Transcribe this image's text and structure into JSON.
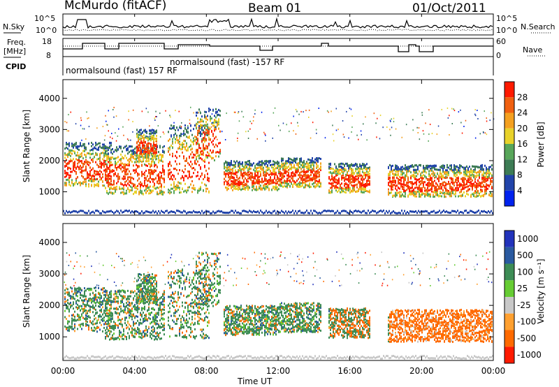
{
  "header": {
    "station": "McMurdo (fitACF)",
    "beam": "Beam 01",
    "date": "01/Oct/2011"
  },
  "noise_panel": {
    "left_label": "N.Sky",
    "left_ticks": [
      "10^5",
      "10^0"
    ],
    "right_label": "N.Search",
    "right_ticks": [
      "10^5",
      "10^0"
    ]
  },
  "freq_panel": {
    "left_label_line1": "Freq.",
    "left_label_line2": "[MHz]",
    "left_ticks": [
      "18",
      "8"
    ],
    "right_label": "Nave",
    "right_ticks": [
      "60",
      "0"
    ]
  },
  "cpid_panel": {
    "label": "CPID",
    "entries": [
      "normalsound (fast) 157 RF",
      "normalsound (fast) -157 RF"
    ]
  },
  "colors": {
    "power_scale": [
      "#0022ee",
      "#2244aa",
      "#3d7c55",
      "#58a65a",
      "#e8d22a",
      "#f4a020",
      "#f06010",
      "#ff1a00"
    ],
    "velocity_scale": [
      "#ff1a00",
      "#ff6a00",
      "#ffa030",
      "#c8c8c8",
      "#66cc33",
      "#3d8c55",
      "#2a5aa0",
      "#2233bb"
    ]
  },
  "chart_data": [
    {
      "type": "heatmap",
      "name": "power",
      "ylabel": "Slant Range [km]",
      "yticks": [
        "1000",
        "2000",
        "3000",
        "4000"
      ],
      "ylim": [
        250,
        4600
      ],
      "xlabel": "Time UT",
      "xticks": [
        "00:00",
        "04:00",
        "08:00",
        "12:00",
        "16:00",
        "20:00",
        "00:00"
      ],
      "colorbar_label": "Power [dB]",
      "colorbar_ticks": [
        "4",
        "8",
        "12",
        "16",
        "20",
        "24",
        "28"
      ],
      "clim": [
        0,
        30
      ]
    },
    {
      "type": "heatmap",
      "name": "velocity",
      "ylabel": "Slant Range [km]",
      "yticks": [
        "1000",
        "2000",
        "3000",
        "4000"
      ],
      "ylim": [
        250,
        4600
      ],
      "xlabel": "Time UT",
      "xticks": [
        "00:00",
        "04:00",
        "08:00",
        "12:00",
        "16:00",
        "20:00",
        "00:00"
      ],
      "colorbar_label": "Velocity [m s⁻¹]",
      "colorbar_ticks": [
        "1000",
        "500",
        "100",
        "25",
        "-25",
        "-100",
        "-500",
        "-1000"
      ]
    }
  ],
  "x_axis_label": "Time UT"
}
